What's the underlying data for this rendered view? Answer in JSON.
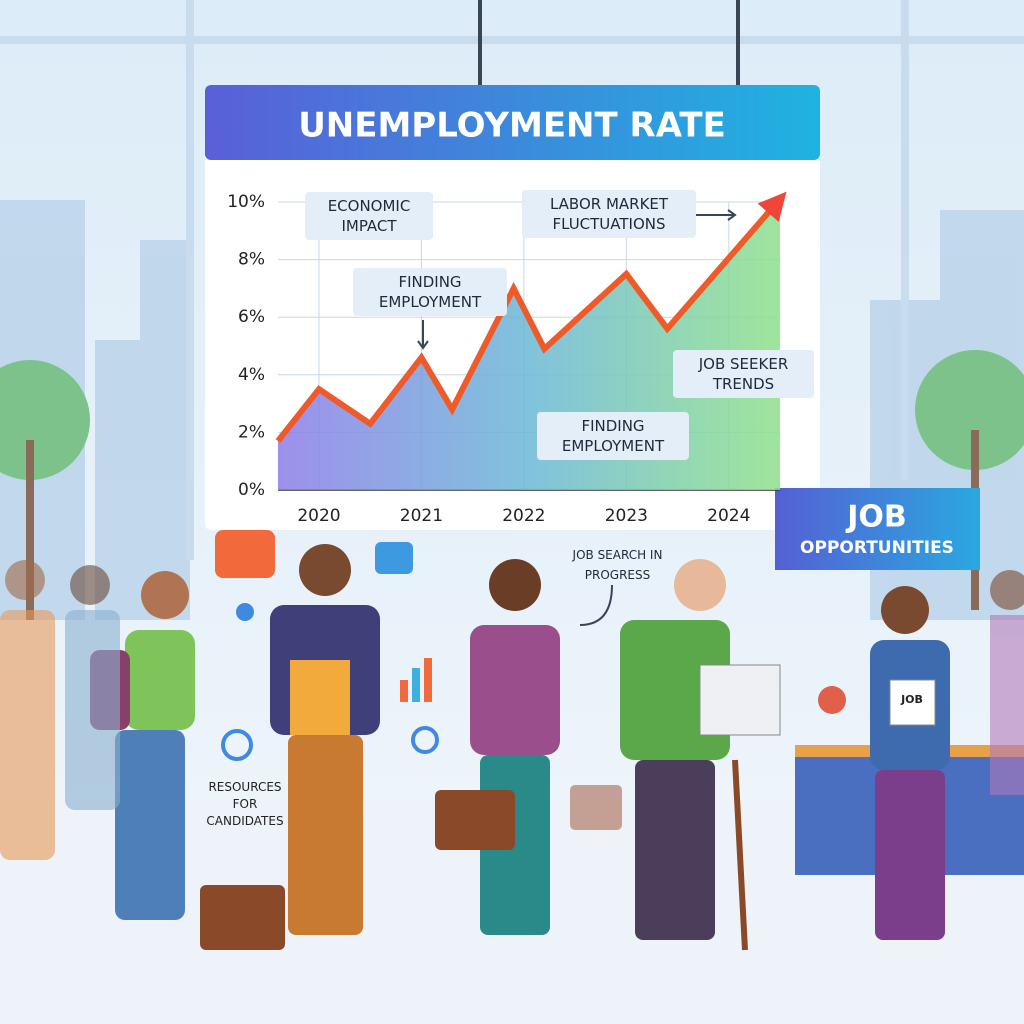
{
  "chart_data": {
    "type": "line",
    "title": "UNEMPLOYMENT RATE",
    "x": [
      2019.6,
      2020.0,
      2020.5,
      2021.0,
      2021.3,
      2021.9,
      2022.2,
      2023.0,
      2023.4,
      2024.5
    ],
    "series": [
      {
        "name": "Unemployment rate",
        "color": "#f05a28",
        "values": [
          1.7,
          3.5,
          2.3,
          4.6,
          2.8,
          7.0,
          4.9,
          7.5,
          5.6,
          10.1
        ]
      }
    ],
    "xlim": [
      2019.6,
      2024.5
    ],
    "xticks": [
      2020,
      2021,
      2022,
      2023,
      2024
    ],
    "ylim": [
      0,
      10
    ],
    "yticks": [
      {
        "value": 0,
        "label": "0%"
      },
      {
        "value": 2,
        "label": "2%"
      },
      {
        "value": 4,
        "label": "4%"
      },
      {
        "value": 6,
        "label": "6%"
      },
      {
        "value": 8,
        "label": "8%"
      },
      {
        "value": 10,
        "label": "10%"
      }
    ],
    "grid": true,
    "annotations": [
      "ECONOMIC IMPACT",
      "FINDING EMPLOYMENT",
      "LABOR MARKET FLUCTUATIONS",
      "JOB SEEKER TRENDS",
      "FINDING EMPLOYMENT"
    ]
  },
  "scene": {
    "booth_sign": "JOB",
    "booth_subtitle": "OPPORTUNITIES",
    "search_note": "JOB SEARCH IN PROGRESS",
    "resources_note": "RESOURCES FOR CANDIDATES",
    "paper_label": "JOB"
  }
}
